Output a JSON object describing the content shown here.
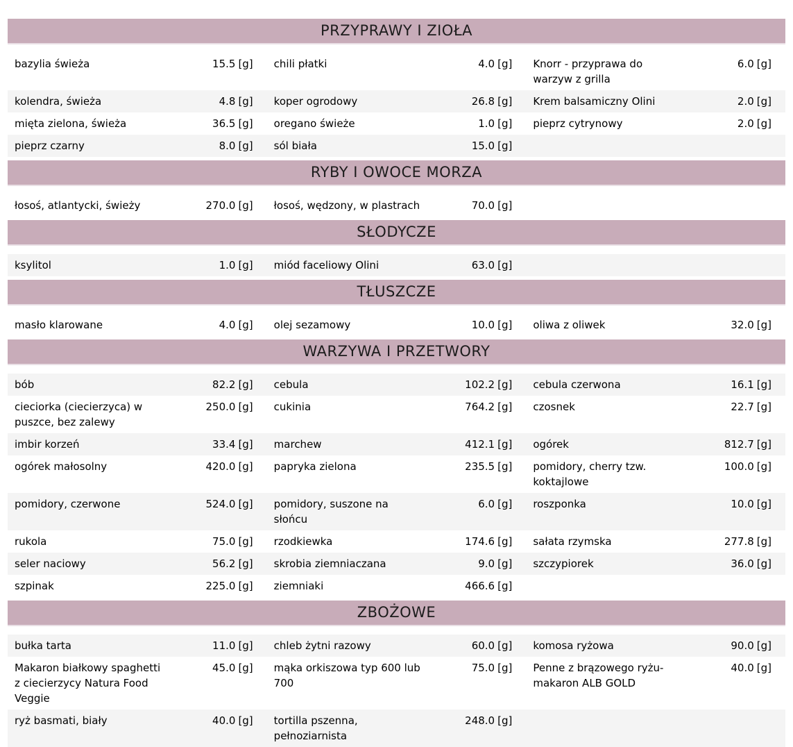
{
  "table": {
    "unit": "[g]",
    "colors": {
      "header_bg": "#c8acb9",
      "row_bg": "#ffffff",
      "row_alt_bg": "#f4f4f4",
      "text": "#000000"
    },
    "sections": [
      {
        "title": "PRZYPRAWY I ZIOŁA",
        "rows": [
          {
            "cells": [
              {
                "name": "bazylia świeża",
                "amount": "15.5"
              },
              {
                "name": "chili płatki",
                "amount": "4.0"
              },
              {
                "name": "Knorr - przyprawa do warzyw z grilla",
                "amount": "6.0"
              }
            ]
          },
          {
            "cells": [
              {
                "name": "kolendra, świeża",
                "amount": "4.8"
              },
              {
                "name": "koper ogrodowy",
                "amount": "26.8"
              },
              {
                "name": "Krem balsamiczny Olini",
                "amount": "2.0"
              }
            ]
          },
          {
            "cells": [
              {
                "name": "mięta zielona, świeża",
                "amount": "36.5"
              },
              {
                "name": "oregano świeże",
                "amount": "1.0"
              },
              {
                "name": "pieprz cytrynowy",
                "amount": "2.0"
              }
            ]
          },
          {
            "cells": [
              {
                "name": "pieprz czarny",
                "amount": "8.0"
              },
              {
                "name": "sól biała",
                "amount": "15.0"
              },
              null
            ]
          }
        ]
      },
      {
        "title": "RYBY I OWOCE MORZA",
        "rows": [
          {
            "cells": [
              {
                "name": "łosoś, atlantycki, świeży",
                "amount": "270.0"
              },
              {
                "name": "łosoś, wędzony, w plastrach",
                "amount": "70.0"
              },
              null
            ]
          }
        ]
      },
      {
        "title": "SŁODYCZE",
        "rows": [
          {
            "cells": [
              {
                "name": "ksylitol",
                "amount": "1.0"
              },
              {
                "name": "miód faceliowy Olini",
                "amount": "63.0"
              },
              null
            ]
          }
        ]
      },
      {
        "title": "TŁUSZCZE",
        "rows": [
          {
            "cells": [
              {
                "name": "masło klarowane",
                "amount": "4.0"
              },
              {
                "name": "olej sezamowy",
                "amount": "10.0"
              },
              {
                "name": "oliwa z oliwek",
                "amount": "32.0"
              }
            ]
          }
        ]
      },
      {
        "title": "WARZYWA I PRZETWORY",
        "rows": [
          {
            "cells": [
              {
                "name": "bób",
                "amount": "82.2"
              },
              {
                "name": "cebula",
                "amount": "102.2"
              },
              {
                "name": "cebula czerwona",
                "amount": "16.1"
              }
            ]
          },
          {
            "cells": [
              {
                "name": "cieciorka (ciecierzyca) w puszce, bez zalewy",
                "amount": "250.0"
              },
              {
                "name": "cukinia",
                "amount": "764.2"
              },
              {
                "name": "czosnek",
                "amount": "22.7"
              }
            ]
          },
          {
            "cells": [
              {
                "name": "imbir korzeń",
                "amount": "33.4"
              },
              {
                "name": "marchew",
                "amount": "412.1"
              },
              {
                "name": "ogórek",
                "amount": "812.7"
              }
            ]
          },
          {
            "cells": [
              {
                "name": "ogórek małosolny",
                "amount": "420.0"
              },
              {
                "name": "papryka zielona",
                "amount": "235.5"
              },
              {
                "name": "pomidory, cherry tzw. koktajlowe",
                "amount": "100.0"
              }
            ]
          },
          {
            "cells": [
              {
                "name": "pomidory, czerwone",
                "amount": "524.0"
              },
              {
                "name": "pomidory, suszone na słońcu",
                "amount": "6.0"
              },
              {
                "name": "roszponka",
                "amount": "10.0"
              }
            ]
          },
          {
            "cells": [
              {
                "name": "rukola",
                "amount": "75.0"
              },
              {
                "name": "rzodkiewka",
                "amount": "174.6"
              },
              {
                "name": "sałata rzymska",
                "amount": "277.8"
              }
            ]
          },
          {
            "cells": [
              {
                "name": "seler naciowy",
                "amount": "56.2"
              },
              {
                "name": "skrobia ziemniaczana",
                "amount": "9.0"
              },
              {
                "name": "szczypiorek",
                "amount": "36.0"
              }
            ]
          },
          {
            "cells": [
              {
                "name": "szpinak",
                "amount": "225.0"
              },
              {
                "name": "ziemniaki",
                "amount": "466.6"
              },
              null
            ]
          }
        ]
      },
      {
        "title": "ZBOŻOWE",
        "rows": [
          {
            "cells": [
              {
                "name": "bułka tarta",
                "amount": "11.0"
              },
              {
                "name": "chleb żytni razowy",
                "amount": "60.0"
              },
              {
                "name": "komosa ryżowa",
                "amount": "90.0"
              }
            ]
          },
          {
            "cells": [
              {
                "name": "Makaron białkowy spaghetti z ciecierzycy Natura Food Veggie",
                "amount": "45.0"
              },
              {
                "name": "mąka orkiszowa typ 600 lub 700",
                "amount": "75.0"
              },
              {
                "name": "Penne z brązowego ryżu- makaron ALB GOLD",
                "amount": "40.0"
              }
            ]
          },
          {
            "cells": [
              {
                "name": "ryż basmati, biały",
                "amount": "40.0"
              },
              {
                "name": "tortilla pszenna, pełnoziarnista",
                "amount": "248.0"
              },
              null
            ]
          }
        ]
      }
    ]
  }
}
